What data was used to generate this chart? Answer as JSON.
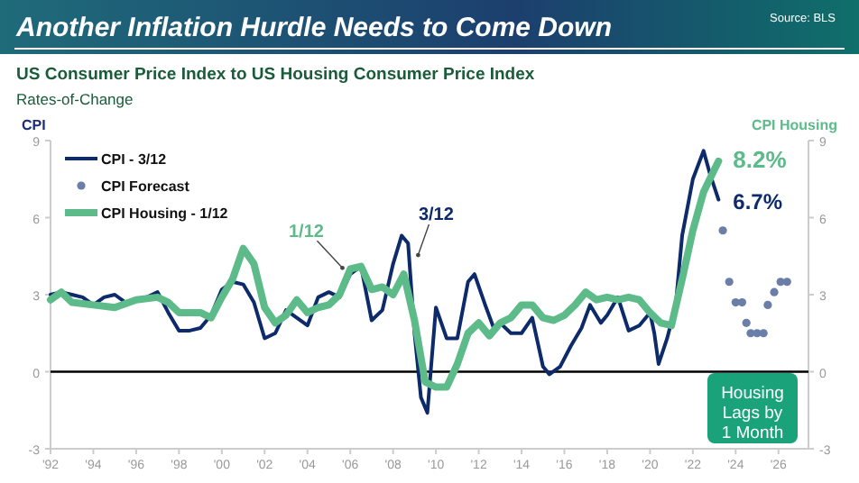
{
  "chart_data": {
    "type": "line",
    "title": "Another Inflation Hurdle Needs to Come Down",
    "subtitle": "US Consumer Price Index to US Housing Consumer Price Index",
    "ylabel": "CPI",
    "y2label": "CPI Housing",
    "annotations": [
      "Source: BLS",
      "Rates-of-Change",
      "Housing Lags by 1 Month",
      {
        "text": "1/12",
        "x": 2005.8,
        "y": 3.9
      },
      {
        "text": "3/12",
        "x": 2009.0,
        "y": 4.4
      },
      {
        "text": "8.2%",
        "x": 2023.2,
        "y": 8.2
      },
      {
        "text": "6.7%",
        "x": 2023.2,
        "y": 6.7
      }
    ],
    "xlim": [
      1992,
      2027.4
    ],
    "xticks": [
      {
        "value": 1992,
        "label": "'92"
      },
      {
        "value": 1994,
        "label": "'94"
      },
      {
        "value": 1996,
        "label": "'96"
      },
      {
        "value": 1998,
        "label": "'98"
      },
      {
        "value": 2000,
        "label": "'00"
      },
      {
        "value": 2002,
        "label": "'02"
      },
      {
        "value": 2004,
        "label": "'04"
      },
      {
        "value": 2006,
        "label": "'06"
      },
      {
        "value": 2008,
        "label": "'08"
      },
      {
        "value": 2010,
        "label": "'10"
      },
      {
        "value": 2012,
        "label": "'12"
      },
      {
        "value": 2014,
        "label": "'14"
      },
      {
        "value": 2016,
        "label": "'16"
      },
      {
        "value": 2018,
        "label": "'18"
      },
      {
        "value": 2020,
        "label": "'20"
      },
      {
        "value": 2022,
        "label": "'22"
      },
      {
        "value": 2024,
        "label": "'24"
      },
      {
        "value": 2026,
        "label": "'26"
      }
    ],
    "ylim": [
      -3,
      9
    ],
    "yticks": [
      -3,
      0,
      3,
      6,
      9
    ],
    "y2lim": [
      -3,
      9
    ],
    "y2ticks": [
      -3,
      0,
      3,
      6,
      9
    ],
    "legend": "top left",
    "ref_lines": [
      {
        "axis": "y",
        "value": 0,
        "color": "#000000"
      }
    ],
    "series": [
      {
        "name": "CPI - 3/12",
        "type": "line",
        "color": "#0d2a6b",
        "x": [
          1992,
          1992.5,
          1993,
          1993.5,
          1994,
          1994.5,
          1995,
          1995.5,
          1996,
          1996.5,
          1997,
          1997.5,
          1998,
          1998.5,
          1999,
          1999.5,
          2000,
          2000.5,
          2001,
          2001.5,
          2002,
          2002.5,
          2003,
          2003.5,
          2004,
          2004.5,
          2005,
          2005.5,
          2006,
          2006.5,
          2007,
          2007.5,
          2008,
          2008.4,
          2008.7,
          2009.0,
          2009.3,
          2009.6,
          2010,
          2010.5,
          2011,
          2011.5,
          2011.8,
          2012.3,
          2012.7,
          2013,
          2013.5,
          2014,
          2014.5,
          2015,
          2015.3,
          2015.8,
          2016.3,
          2016.8,
          2017.2,
          2017.7,
          2018,
          2018.5,
          2019,
          2019.5,
          2020,
          2020.2,
          2020.4,
          2020.8,
          2021.2,
          2021.5,
          2022,
          2022.5,
          2022.8,
          2023.2
        ],
        "values": [
          3.0,
          3.1,
          3.0,
          2.9,
          2.6,
          2.9,
          3.0,
          2.7,
          2.8,
          2.9,
          3.1,
          2.3,
          1.6,
          1.6,
          1.7,
          2.2,
          3.2,
          3.5,
          3.4,
          2.7,
          1.3,
          1.5,
          2.4,
          2.1,
          1.8,
          2.9,
          3.1,
          2.9,
          3.8,
          4.1,
          2.0,
          2.4,
          4.2,
          5.3,
          5.0,
          1.5,
          -1.0,
          -1.6,
          2.5,
          1.3,
          1.3,
          3.5,
          3.8,
          2.6,
          1.7,
          1.9,
          1.5,
          1.5,
          2.1,
          0.2,
          -0.1,
          0.2,
          1.0,
          1.7,
          2.6,
          1.9,
          2.2,
          2.9,
          1.6,
          1.8,
          2.3,
          1.5,
          0.3,
          1.3,
          2.6,
          5.3,
          7.5,
          8.6,
          7.7,
          6.7
        ]
      },
      {
        "name": "CPI Forecast",
        "type": "scatter",
        "marker": "circle",
        "color": "#6a7ea8",
        "x": [
          2023.4,
          2023.7,
          2024.0,
          2024.3,
          2024.5,
          2024.7,
          2025.0,
          2025.3,
          2025.5,
          2025.8,
          2026.1,
          2026.4
        ],
        "values": [
          5.5,
          3.5,
          2.7,
          2.7,
          1.9,
          1.5,
          1.5,
          1.5,
          2.6,
          3.1,
          3.5,
          3.5
        ]
      },
      {
        "name": "CPI Housing - 1/12",
        "type": "line",
        "axis": "y2",
        "color": "#5dbb8a",
        "x": [
          1992,
          1992.5,
          1993,
          1994,
          1995,
          1996,
          1997,
          1997.5,
          1998,
          1999,
          1999.5,
          2000,
          2000.5,
          2001,
          2001.5,
          2002,
          2002.5,
          2003,
          2003.5,
          2004,
          2004.5,
          2005,
          2005.5,
          2006,
          2006.5,
          2007,
          2007.5,
          2008,
          2008.5,
          2009,
          2009.5,
          2010,
          2010.5,
          2011,
          2011.5,
          2012,
          2012.5,
          2013,
          2013.5,
          2014,
          2014.5,
          2015,
          2015.5,
          2016,
          2016.5,
          2017,
          2017.5,
          2018,
          2018.5,
          2019,
          2019.5,
          2020,
          2020.5,
          2021,
          2021.5,
          2022,
          2022.5,
          2023.2
        ],
        "values": [
          2.8,
          3.1,
          2.7,
          2.6,
          2.5,
          2.8,
          2.9,
          2.7,
          2.3,
          2.3,
          2.1,
          2.9,
          3.6,
          4.8,
          4.2,
          2.5,
          1.9,
          2.2,
          2.8,
          2.3,
          2.5,
          2.6,
          3.0,
          4.0,
          4.1,
          3.2,
          3.3,
          3.0,
          3.8,
          2.0,
          -0.4,
          -0.6,
          -0.6,
          0.3,
          1.5,
          1.9,
          1.4,
          1.9,
          2.1,
          2.6,
          2.6,
          2.1,
          2.0,
          2.2,
          2.6,
          3.1,
          2.8,
          2.9,
          2.8,
          2.9,
          2.8,
          2.3,
          1.9,
          1.8,
          3.6,
          5.5,
          7.0,
          8.2
        ]
      }
    ]
  }
}
